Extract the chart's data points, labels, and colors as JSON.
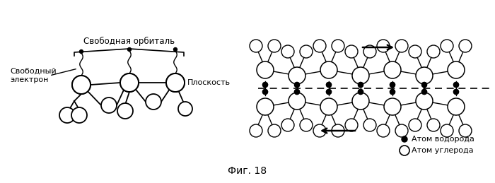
{
  "title": "Фиг. 18",
  "label_free_orbital": "Свободная орбиталь",
  "label_free_electron": "Свободный\nэлектрон",
  "label_plane": "Плоскость",
  "label_hydrogen": "Атом водорода",
  "label_carbon": "Атом углерода",
  "bg_color": "#ffffff",
  "line_color": "#000000",
  "circle_fill": "#ffffff",
  "circle_edge": "#000000",
  "dot_fill": "#000000"
}
